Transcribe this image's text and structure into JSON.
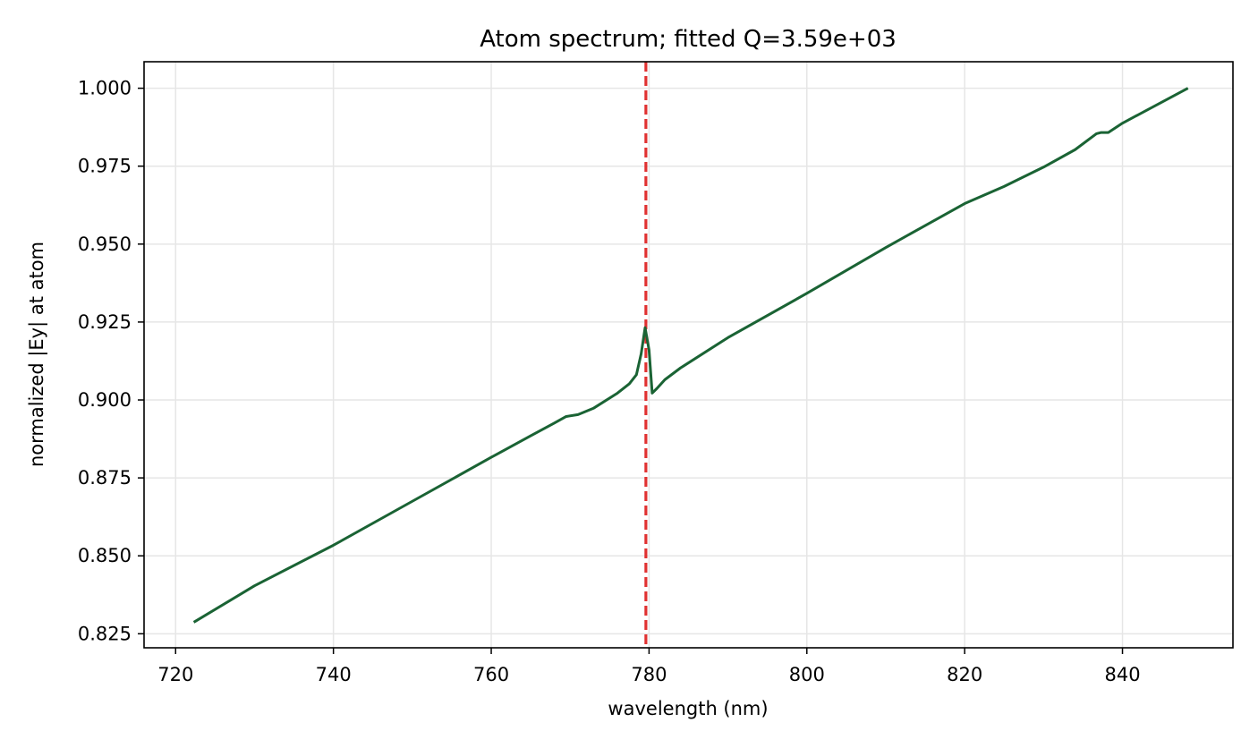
{
  "chart_data": {
    "type": "line",
    "title": "Atom spectrum; fitted Q=3.59e+03",
    "xlabel": "wavelength (nm)",
    "ylabel": "normalized |Ey| at atom",
    "xlim": [
      716,
      854
    ],
    "ylim": [
      0.8205,
      1.0085
    ],
    "xticks": [
      720,
      740,
      760,
      780,
      800,
      820,
      840
    ],
    "xtick_labels": [
      "720",
      "740",
      "760",
      "780",
      "800",
      "820",
      "840"
    ],
    "yticks": [
      0.825,
      0.85,
      0.875,
      0.9,
      0.925,
      0.95,
      0.975,
      1.0
    ],
    "ytick_labels": [
      "0.825",
      "0.850",
      "0.875",
      "0.900",
      "0.925",
      "0.950",
      "0.975",
      "1.000"
    ],
    "grid": true,
    "series": [
      {
        "color": "#1a6334",
        "x": [
          722.3,
          730,
          740,
          750,
          760,
          765,
          768,
          769.5,
          771,
          773,
          776,
          777.5,
          778.4,
          779.0,
          779.5,
          780.0,
          780.4,
          781.0,
          782.0,
          784,
          790,
          800,
          810,
          820,
          825,
          830,
          834,
          836.7,
          837.3,
          838.2,
          840,
          848.3
        ],
        "y": [
          0.8287,
          0.8404,
          0.8534,
          0.8675,
          0.8816,
          0.8885,
          0.8926,
          0.8947,
          0.8953,
          0.8974,
          0.9022,
          0.9052,
          0.9081,
          0.9148,
          0.9232,
          0.916,
          0.9022,
          0.9037,
          0.9065,
          0.9103,
          0.92,
          0.9342,
          0.9489,
          0.963,
          0.9685,
          0.9747,
          0.9803,
          0.9854,
          0.9858,
          0.9858,
          0.9888,
          1.0
        ]
      }
    ],
    "reference_line": {
      "orientation": "vertical",
      "x": 779.6,
      "color": "#e03030",
      "style": "dashed"
    }
  }
}
